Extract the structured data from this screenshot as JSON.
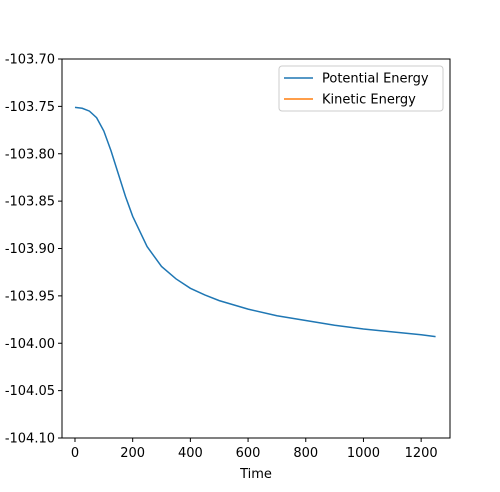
{
  "chart_data": {
    "type": "line",
    "title": "",
    "xlabel": "Time",
    "ylabel": "",
    "xlim": [
      -45,
      1300
    ],
    "ylim": [
      -104.1,
      -103.7
    ],
    "x_ticks": [
      0,
      200,
      400,
      600,
      800,
      1000,
      1200
    ],
    "y_ticks": [
      -103.7,
      -103.75,
      -103.8,
      -103.85,
      -103.9,
      -103.95,
      -104.0,
      -104.05,
      -104.1
    ],
    "x_tick_labels": [
      "0",
      "200",
      "400",
      "600",
      "800",
      "1000",
      "1200"
    ],
    "y_tick_labels": [
      "-103.70",
      "-103.75",
      "-103.80",
      "-103.85",
      "-103.90",
      "-103.95",
      "-104.00",
      "-104.05",
      "-104.10"
    ],
    "grid": false,
    "legend_position": "top-right",
    "series": [
      {
        "name": "Potential Energy",
        "color": "#1f77b4",
        "x": [
          0,
          25,
          50,
          75,
          100,
          125,
          150,
          175,
          200,
          250,
          300,
          350,
          400,
          450,
          500,
          600,
          700,
          800,
          900,
          1000,
          1100,
          1200,
          1250
        ],
        "y": [
          -103.751,
          -103.752,
          -103.755,
          -103.762,
          -103.776,
          -103.797,
          -103.821,
          -103.845,
          -103.866,
          -103.898,
          -103.919,
          -103.932,
          -103.942,
          -103.949,
          -103.955,
          -103.964,
          -103.971,
          -103.976,
          -103.981,
          -103.985,
          -103.988,
          -103.991,
          -103.993
        ]
      },
      {
        "name": "Kinetic Energy",
        "color": "#ff7f0e",
        "x": [],
        "y": []
      }
    ]
  }
}
